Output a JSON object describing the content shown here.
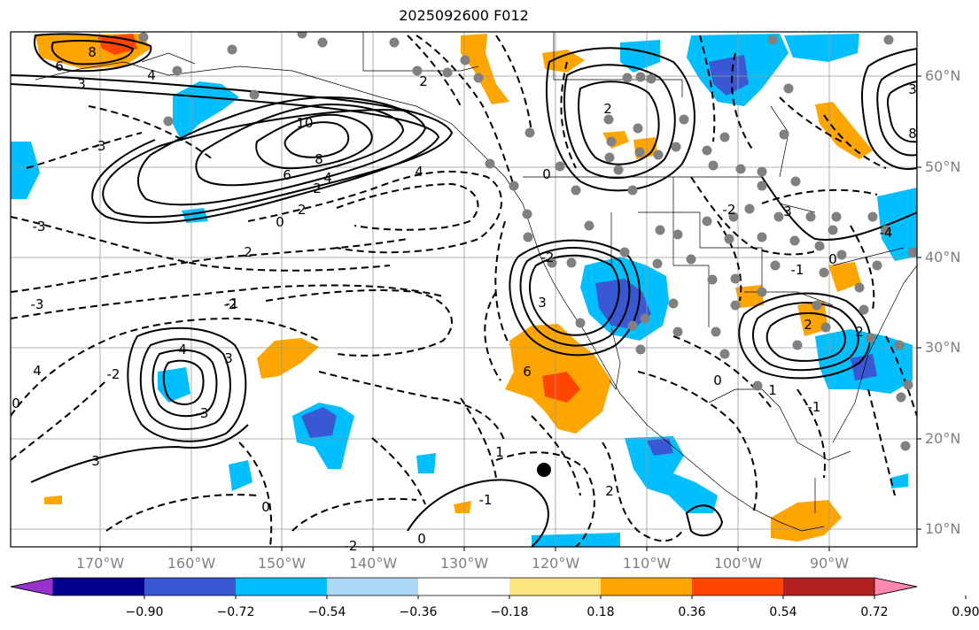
{
  "title": "2025092600 F012",
  "lat_labels": [
    "60°N",
    "50°N",
    "40°N",
    "30°N",
    "20°N",
    "10°N"
  ],
  "lon_labels": [
    "170°W",
    "160°W",
    "150°W",
    "140°W",
    "130°W",
    "120°W",
    "110°W",
    "100°W",
    "90°W"
  ],
  "colorbar": {
    "tick_labels": [
      "−0.90",
      "−0.72",
      "−0.54",
      "−0.36",
      "−0.18",
      "0.18",
      "0.36",
      "0.54",
      "0.72",
      "0.90"
    ],
    "colors": [
      "#9932cc",
      "#00008b",
      "#3b58d4",
      "#00bfff",
      "#add8f6",
      "#ffffff",
      "#ffe680",
      "#ffa500",
      "#ff4500",
      "#b22222",
      "#ff88b0"
    ]
  },
  "contour_labels": [
    "6",
    "8",
    "4",
    "3",
    "-3",
    "10",
    "8",
    "6",
    "4",
    "2",
    "-3",
    "0",
    "-2",
    "2",
    "-3",
    "-2",
    "4",
    "2",
    "4",
    "3",
    "-2",
    "-3",
    "-1",
    "0",
    "4",
    "3",
    "0",
    "-2",
    "1",
    "-1",
    "0",
    "2",
    "3",
    "-2",
    "1",
    "0",
    "-1",
    "-4",
    "3",
    "-2",
    "2",
    "0",
    "2",
    "-1",
    "2",
    "0",
    "3",
    "8",
    "6"
  ]
}
